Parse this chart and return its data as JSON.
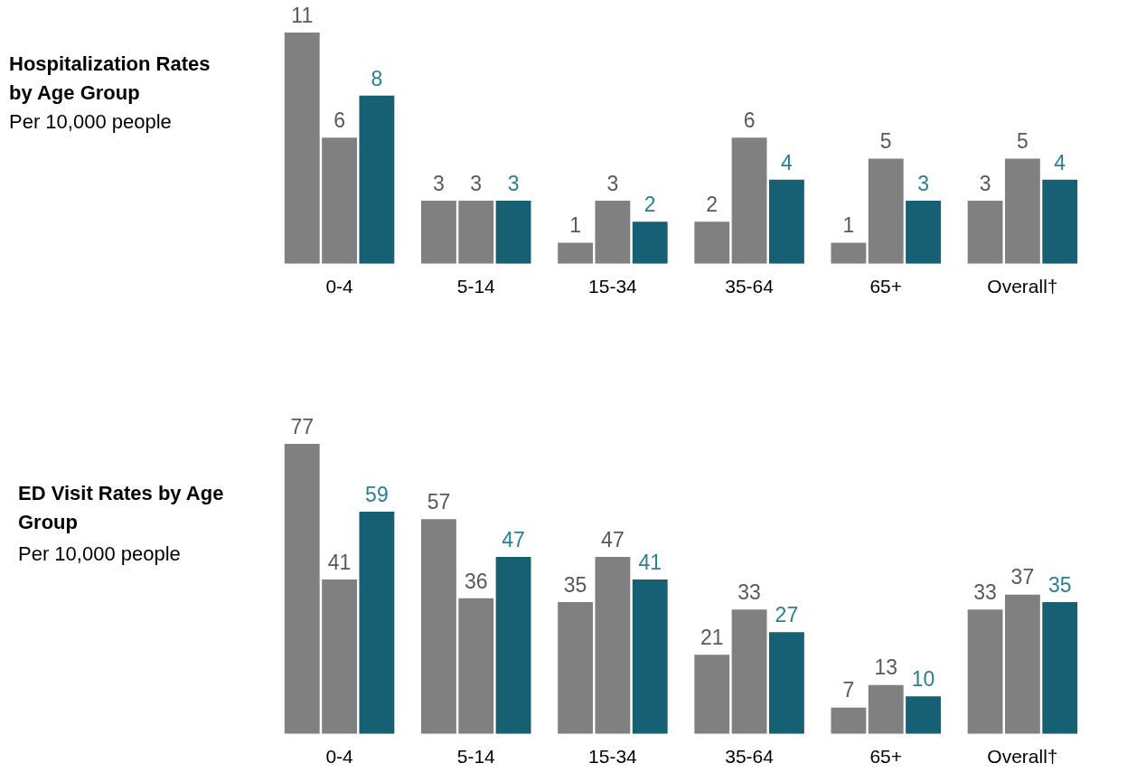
{
  "chart_data": [
    {
      "type": "bar",
      "title": "Hospitalization Rates by Age Group",
      "subtitle": "Per 10,000 people",
      "categories": [
        "0-4",
        "5-14",
        "15-34",
        "35-64",
        "65+",
        "Overall†"
      ],
      "series": [
        {
          "color": "#808080",
          "values": [
            11,
            3,
            1,
            2,
            1,
            3
          ]
        },
        {
          "color": "#808080",
          "values": [
            6,
            3,
            3,
            6,
            5,
            5
          ]
        },
        {
          "color": "#175f72",
          "values": [
            8,
            3,
            2,
            4,
            3,
            4
          ]
        }
      ],
      "data_labels": true,
      "grid": false,
      "legend": false,
      "tick_labels": "x"
    },
    {
      "type": "bar",
      "title": "ED Visit Rates by Age Group",
      "subtitle": "Per 10,000 people",
      "categories": [
        "0-4",
        "5-14",
        "15-34",
        "35-64",
        "65+",
        "Overall†"
      ],
      "series": [
        {
          "color": "#808080",
          "values": [
            77,
            57,
            35,
            21,
            7,
            33
          ]
        },
        {
          "color": "#808080",
          "values": [
            41,
            36,
            47,
            33,
            13,
            37
          ]
        },
        {
          "color": "#175f72",
          "values": [
            59,
            47,
            41,
            27,
            10,
            35
          ]
        }
      ],
      "data_labels": true,
      "grid": false,
      "legend": false,
      "tick_labels": "x"
    }
  ]
}
